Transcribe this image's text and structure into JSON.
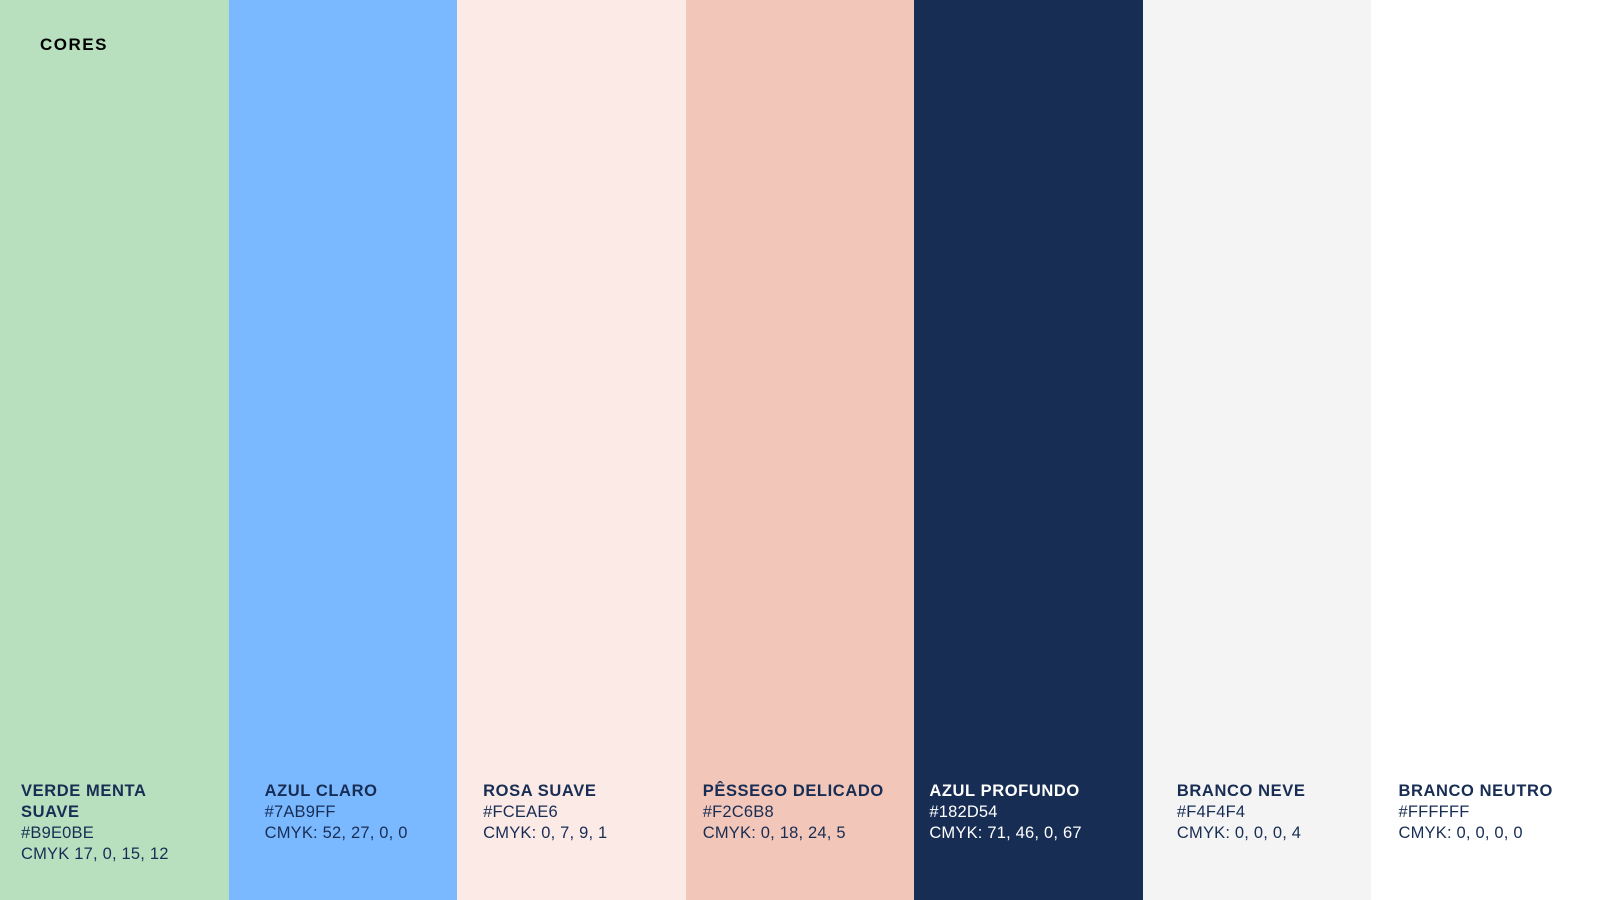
{
  "page": {
    "title": "CORES",
    "title_color": "#000000",
    "background": "#FFFFFF"
  },
  "palette": [
    {
      "name": "VERDE MENTA SUAVE",
      "hex": "#B9E0BE",
      "cmyk": "CMYK 17, 0, 15, 12",
      "text_color": "#182D54"
    },
    {
      "name": "AZUL CLARO",
      "hex": "#7AB9FF",
      "cmyk": "CMYK: 52, 27, 0, 0",
      "text_color": "#182D54"
    },
    {
      "name": "ROSA SUAVE",
      "hex": "#FCEAE6",
      "cmyk": "CMYK: 0, 7, 9, 1",
      "text_color": "#182D54"
    },
    {
      "name": "PÊSSEGO DELICADO",
      "hex": "#F2C6B8",
      "cmyk": "CMYK: 0, 18, 24, 5",
      "text_color": "#182D54"
    },
    {
      "name": "AZUL PROFUNDO",
      "hex": "#182D54",
      "cmyk": "CMYK: 71, 46, 0, 67",
      "text_color": "#FFFFFF"
    },
    {
      "name": "BRANCO NEVE",
      "hex": "#F4F4F4",
      "cmyk": "CMYK: 0, 0, 0, 4",
      "text_color": "#182D54"
    },
    {
      "name": "BRANCO NEUTRO",
      "hex": "#FFFFFF",
      "cmyk": "CMYK: 0, 0, 0, 0",
      "text_color": "#182D54"
    }
  ]
}
